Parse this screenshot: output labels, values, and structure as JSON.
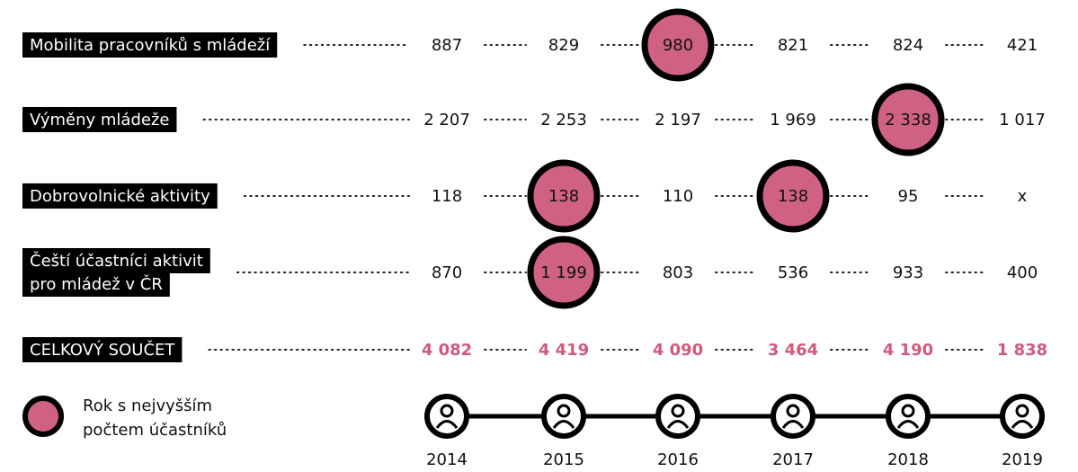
{
  "rows": [
    {
      "label": [
        "Mobilita pracovníků s mládeží"
      ],
      "values": [
        "887",
        "829",
        "980",
        "821",
        "824",
        "421"
      ],
      "highlighted": [
        2
      ]
    },
    {
      "label": [
        "Výměny mládeže"
      ],
      "values": [
        "2 207",
        "2 253",
        "2 197",
        "1 969",
        "2 338",
        "1 017"
      ],
      "highlighted": [
        4
      ]
    },
    {
      "label": [
        "Dobrovolnické aktivity"
      ],
      "values": [
        "118",
        "138",
        "110",
        "138",
        "95",
        "x"
      ],
      "highlighted": [
        1,
        3
      ]
    },
    {
      "label": [
        "Čeští účastníci aktivit",
        "pro mládež v ČR"
      ],
      "values": [
        "870",
        "1 199",
        "803",
        "536",
        "933",
        "400"
      ],
      "highlighted": [
        1
      ]
    }
  ],
  "total": {
    "label": [
      "CELKOVÝ SOUČET"
    ],
    "values": [
      "4 082",
      "4 419",
      "4 090",
      "3 464",
      "4 190",
      "1 838"
    ]
  },
  "legend": [
    "Rok s nejvyšším",
    "počtem účastníků"
  ],
  "years": [
    "2014",
    "2015",
    "2016",
    "2017",
    "2018",
    "2019"
  ]
}
